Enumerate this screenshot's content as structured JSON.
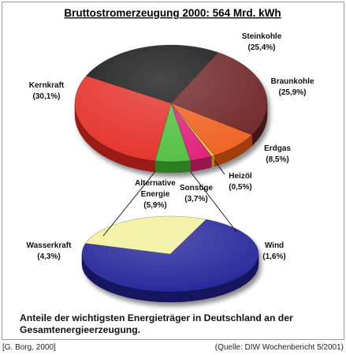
{
  "chart_data": [
    {
      "type": "pie",
      "title": "Bruttostromerzeugung 2000: 564 Mrd. kWh",
      "slices": [
        {
          "label": "Steinkohle",
          "value": 25.4,
          "value_label": "(25,4%)",
          "color": "#161616",
          "side": "#060606"
        },
        {
          "label": "Braunkohle",
          "value": 25.9,
          "value_label": "(25,9%)",
          "color": "#6e2424",
          "side": "#451414"
        },
        {
          "label": "Erdgas",
          "value": 8.5,
          "value_label": "(8,5%)",
          "color": "#f06020",
          "side": "#a23c10"
        },
        {
          "label": "Heizöl",
          "value": 0.5,
          "value_label": "(0,5%)",
          "color": "#e8d23c",
          "side": "#9c8a18"
        },
        {
          "label": "Sonstige",
          "value": 3.7,
          "value_label": "(3,7%)",
          "color": "#e0207a",
          "side": "#961350"
        },
        {
          "label": "Alternative Energie",
          "label_lines": [
            "Alternative",
            "Energie"
          ],
          "value": 5.9,
          "value_label": "(5,9%)",
          "color": "#52c040",
          "side": "#2f7c22"
        },
        {
          "label": "Kernkraft",
          "value": 30.1,
          "value_label": "(30,1%)",
          "color": "#e4302a",
          "side": "#9b1c18"
        }
      ]
    },
    {
      "type": "pie",
      "title": "",
      "slices": [
        {
          "label": "Wasserkraft",
          "value": 4.3,
          "value_label": "(4,3%)",
          "color": "#24249a",
          "side": "#121260"
        },
        {
          "label": "Wind",
          "value": 1.6,
          "value_label": "(1,6%)",
          "color": "#f2f09a",
          "side": "#b0ae5c"
        }
      ]
    }
  ],
  "caption": "Anteile der wichtigsten Energieträger in Deutschland an der Gesamtenergieerzeugung.",
  "footer": {
    "author": "[G. Borg, 2000]",
    "source": "(Quelle: DIW Wochenbericht 5/2001)"
  }
}
